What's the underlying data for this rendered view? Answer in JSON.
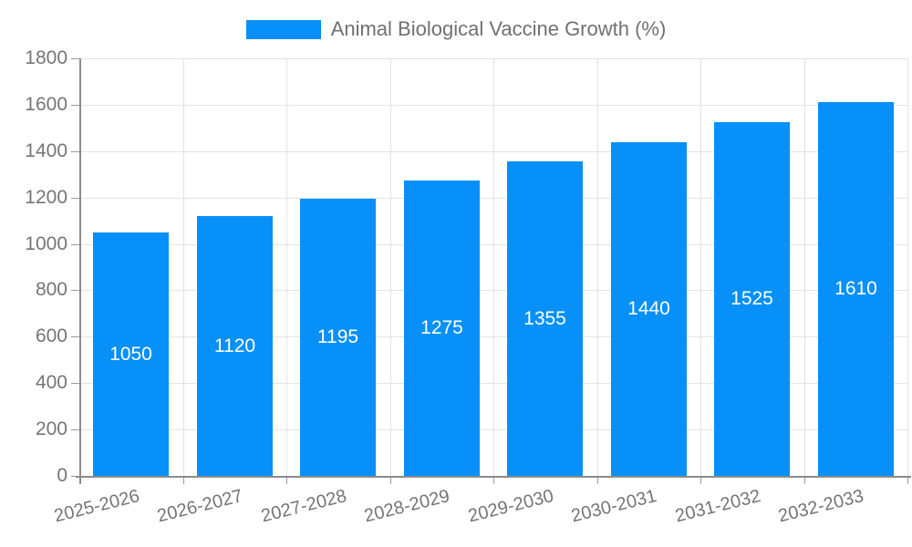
{
  "legend": {
    "label": "Animal Biological Vaccine Growth (%)"
  },
  "chart_data": {
    "type": "bar",
    "title": "Animal Biological Vaccine Growth (%)",
    "categories": [
      "2025-2026",
      "2026-2027",
      "2027-2028",
      "2028-2029",
      "2029-2030",
      "2030-2031",
      "2031-2032",
      "2032-2033"
    ],
    "values": [
      1050,
      1120,
      1195,
      1275,
      1355,
      1440,
      1525,
      1610
    ],
    "xlabel": "",
    "ylabel": "",
    "ylim": [
      0,
      1800
    ],
    "yticks": [
      0,
      200,
      400,
      600,
      800,
      1000,
      1200,
      1400,
      1600,
      1800
    ],
    "grid": true,
    "legend_position": "top",
    "colors": {
      "bar": "#0690f8",
      "bar_value_text": "#ffffff",
      "axis_text": "#757575",
      "legend_text": "#707070",
      "grid_line": "#e3e3e3",
      "axis_line": "#8c8c8c",
      "tick_mark": "#9a9a9a",
      "background": "#ffffff"
    }
  }
}
